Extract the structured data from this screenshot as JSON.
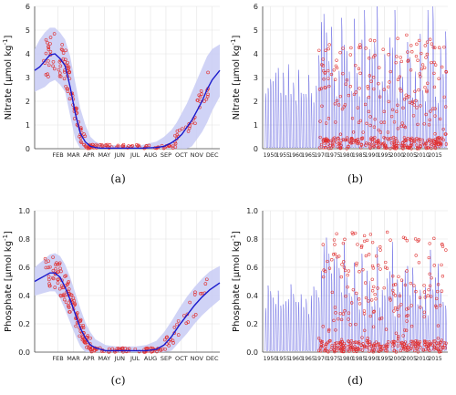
{
  "colors": {
    "mean_line": "#1a1acc",
    "band": "#c8cbf5",
    "obs": "#e03030",
    "series_line": "#5555e0",
    "grid": "#e4e4e4",
    "axis": "#444444"
  },
  "chart_data": [
    {
      "id": "a",
      "type": "line",
      "panel_label": "(a)",
      "ylabel": "Nitrate [μmol kg⁻¹]",
      "ylabel_parts": {
        "pre": "Nitrate [",
        "mu": "μ",
        "post": "mol kg",
        "sup": "-1",
        "end": "]"
      },
      "ylim": [
        0,
        6
      ],
      "yticks": [
        "0",
        "1",
        "2",
        "3",
        "4",
        "5",
        "6"
      ],
      "xlim": [
        0,
        365
      ],
      "xtick_labels": [
        "FEB",
        "MAR",
        "APR",
        "MAY",
        "JUN",
        "JUL",
        "AUG",
        "SEP",
        "OCT",
        "NOV",
        "DEC"
      ],
      "grid": true,
      "climatology_mean": {
        "day": [
          0,
          10,
          20,
          30,
          40,
          50,
          60,
          70,
          80,
          90,
          100,
          110,
          120,
          130,
          150,
          180,
          210,
          240,
          255,
          270,
          280,
          290,
          300,
          310,
          320,
          330,
          340,
          350,
          365
        ],
        "value": [
          3.3,
          3.45,
          3.7,
          3.95,
          4.0,
          3.8,
          3.5,
          2.6,
          1.5,
          0.65,
          0.28,
          0.1,
          0.05,
          0.02,
          0.02,
          0.02,
          0.02,
          0.05,
          0.1,
          0.25,
          0.4,
          0.6,
          0.9,
          1.2,
          1.6,
          2.0,
          2.5,
          2.9,
          3.3
        ]
      },
      "band_upper": [
        4.2,
        4.6,
        4.9,
        5.1,
        5.1,
        4.9,
        4.6,
        3.9,
        2.8,
        1.7,
        1.0,
        0.5,
        0.3,
        0.2,
        0.15,
        0.15,
        0.15,
        0.3,
        0.5,
        0.8,
        1.1,
        1.5,
        1.9,
        2.4,
        2.9,
        3.4,
        3.9,
        4.2,
        4.4
      ],
      "band_lower": [
        2.4,
        2.5,
        2.6,
        2.8,
        2.9,
        2.7,
        2.4,
        1.4,
        0.4,
        0.0,
        0.0,
        0.0,
        0.0,
        0.0,
        0.0,
        0.0,
        0.0,
        0.0,
        0.0,
        0.0,
        0.0,
        0.0,
        0.0,
        0.1,
        0.4,
        0.7,
        1.1,
        1.6,
        2.2
      ]
    },
    {
      "id": "b",
      "type": "line",
      "panel_label": "(b)",
      "ylabel": "Nitrate [μmol kg⁻¹]",
      "ylabel_parts": {
        "pre": "Nitrate [",
        "mu": "μ",
        "post": "mol kg",
        "sup": "-1",
        "end": "]"
      },
      "ylim": [
        0,
        6
      ],
      "yticks": [
        "0",
        "1",
        "2",
        "3",
        "4",
        "5",
        "6"
      ],
      "xlim": [
        1947,
        2020
      ],
      "xticks": [
        1950,
        1955,
        1960,
        1965,
        1970,
        1975,
        1980,
        1985,
        1990,
        1995,
        2000,
        2005,
        2010,
        2015
      ],
      "grid": true,
      "seasonal_series": {
        "start_year": 1948,
        "end_year": 2019,
        "winter_peak_mean": 3.4,
        "summer_value": 0.05
      }
    },
    {
      "id": "c",
      "type": "line",
      "panel_label": "(c)",
      "ylabel": "Phosphate [μmol kg⁻¹]",
      "ylabel_parts": {
        "pre": "Phosphate [",
        "mu": "μ",
        "post": "mol kg",
        "sup": "-1",
        "end": "]"
      },
      "ylim": [
        0,
        1.0
      ],
      "yticks": [
        "0.0",
        "0.2",
        "0.4",
        "0.6",
        "0.8",
        "1.0"
      ],
      "xlim": [
        0,
        365
      ],
      "xtick_labels": [
        "FEB",
        "MAR",
        "APR",
        "MAY",
        "JUN",
        "JUL",
        "AUG",
        "SEP",
        "OCT",
        "NOV",
        "DEC"
      ],
      "grid": true,
      "climatology_mean": {
        "day": [
          0,
          10,
          20,
          30,
          40,
          50,
          60,
          70,
          80,
          90,
          100,
          110,
          120,
          140,
          160,
          180,
          200,
          220,
          240,
          255,
          270,
          285,
          300,
          315,
          330,
          345,
          365
        ],
        "value": [
          0.5,
          0.52,
          0.54,
          0.56,
          0.56,
          0.53,
          0.46,
          0.37,
          0.27,
          0.17,
          0.1,
          0.05,
          0.03,
          0.01,
          0.01,
          0.01,
          0.01,
          0.01,
          0.02,
          0.05,
          0.11,
          0.19,
          0.26,
          0.33,
          0.39,
          0.44,
          0.49
        ]
      },
      "band_upper": [
        0.6,
        0.63,
        0.66,
        0.69,
        0.7,
        0.68,
        0.62,
        0.53,
        0.42,
        0.31,
        0.21,
        0.14,
        0.09,
        0.05,
        0.04,
        0.04,
        0.04,
        0.05,
        0.08,
        0.14,
        0.22,
        0.31,
        0.39,
        0.46,
        0.52,
        0.57,
        0.61
      ],
      "band_lower": [
        0.4,
        0.41,
        0.42,
        0.43,
        0.43,
        0.38,
        0.3,
        0.21,
        0.12,
        0.04,
        0.0,
        0.0,
        0.0,
        0.0,
        0.0,
        0.0,
        0.0,
        0.0,
        0.0,
        0.0,
        0.01,
        0.07,
        0.13,
        0.2,
        0.26,
        0.31,
        0.37
      ]
    },
    {
      "id": "d",
      "type": "line",
      "panel_label": "(d)",
      "ylabel": "Phosphate [μmol kg⁻¹]",
      "ylabel_parts": {
        "pre": "Phosphate [",
        "mu": "μ",
        "post": "mol kg",
        "sup": "-1",
        "end": "]"
      },
      "ylim": [
        0,
        1.0
      ],
      "yticks": [
        "0.0",
        "0.2",
        "0.4",
        "0.6",
        "0.8",
        "1.0"
      ],
      "xlim": [
        1947,
        2020
      ],
      "xticks": [
        1950,
        1955,
        1960,
        1965,
        1970,
        1975,
        1980,
        1985,
        1990,
        1995,
        2000,
        2005,
        2010,
        2015
      ],
      "grid": true,
      "seasonal_series": {
        "start_year": 1948,
        "end_year": 2019,
        "winter_peak_mean": 0.45,
        "summer_value": 0.01
      }
    }
  ]
}
